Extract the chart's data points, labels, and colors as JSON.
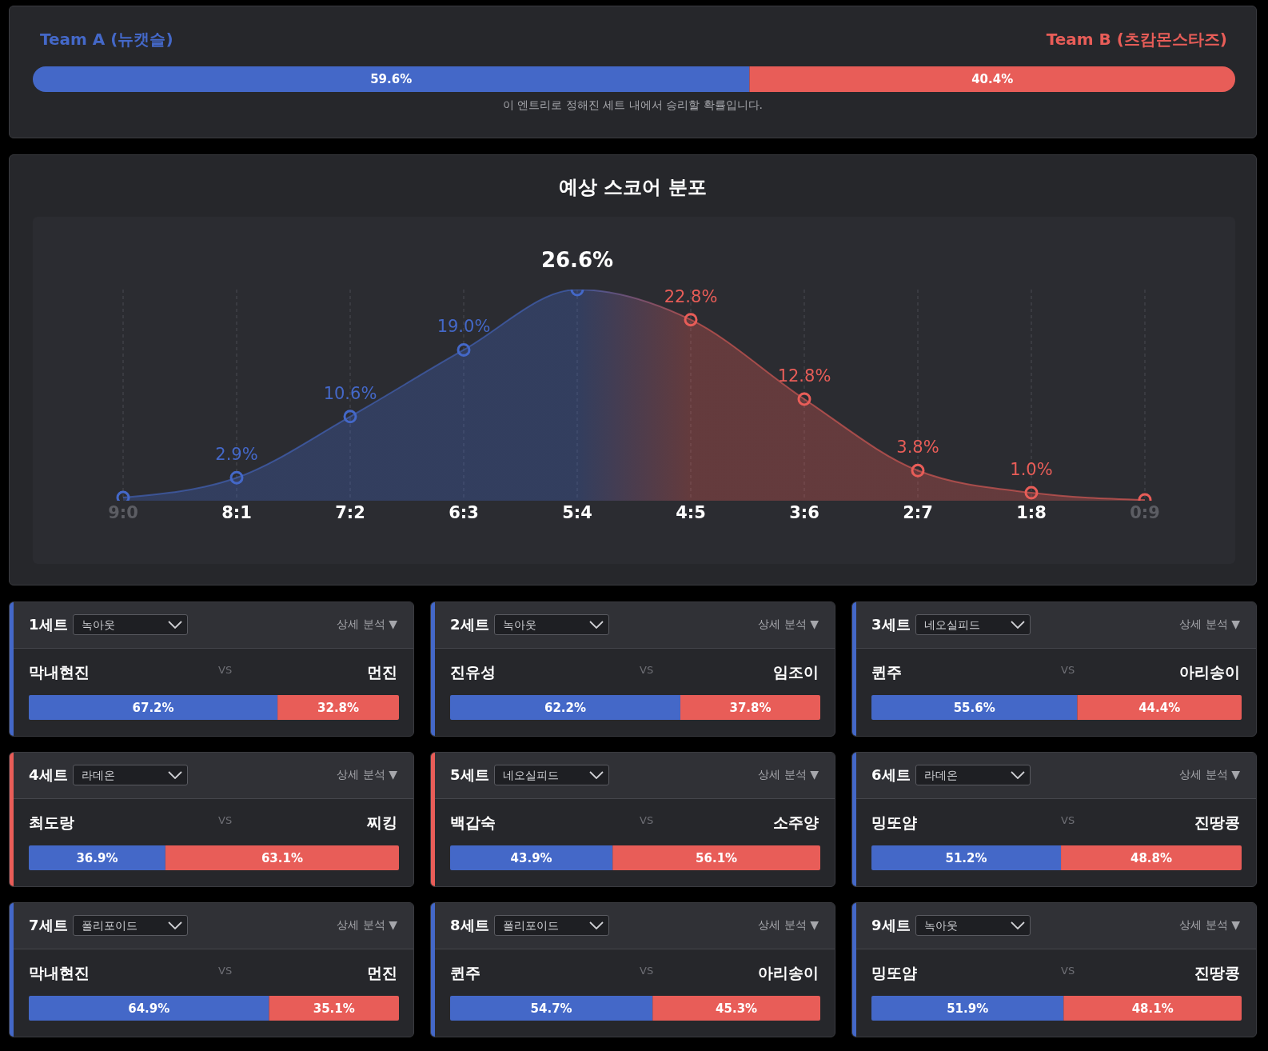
{
  "chart_data": [
    {
      "type": "bar",
      "orientation": "horizontal",
      "stacked": true,
      "categories": [
        null
      ],
      "tick_labels": false,
      "series": [
        {
          "name": "Team A (뉴캣슬)",
          "color": "#4468c8",
          "values": [
            59.6
          ],
          "value_labels": [
            "59.6%"
          ]
        },
        {
          "name": "Team B (츠캄몬스타즈)",
          "color": "#e85d58",
          "values": [
            40.4
          ],
          "value_labels": [
            "40.4%"
          ]
        }
      ],
      "annotations": [
        "이 엔트리로 정해진 세트 내에서 승리할 확률입니다."
      ]
    },
    {
      "type": "area",
      "title": "예상 스코어 분포",
      "categories": [
        "9:0",
        "8:1",
        "7:2",
        "6:3",
        "5:4",
        "4:5",
        "3:6",
        "2:7",
        "1:8",
        "0:9"
      ],
      "values": [
        0.4,
        2.9,
        10.6,
        19.0,
        26.6,
        22.8,
        12.8,
        3.8,
        1.0,
        0.1
      ],
      "value_labels": [
        null,
        "2.9%",
        "10.6%",
        "19.0%",
        "26.6%",
        "22.8%",
        "12.8%",
        "3.8%",
        "1.0%",
        null
      ],
      "colors": [
        "#4468c8",
        "#4468c8",
        "#4468c8",
        "#4468c8",
        "#4468c8",
        "#e85d58",
        "#e85d58",
        "#e85d58",
        "#e85d58",
        "#e85d58"
      ],
      "marker": "circle",
      "tick_labels": "x",
      "grid": "x"
    },
    {
      "type": "bar",
      "orientation": "horizontal",
      "stacked": true,
      "title": "1세트",
      "categories": [
        null
      ],
      "tick_labels": false,
      "series": [
        {
          "name": "막내현진",
          "color": "#4468c8",
          "values": [
            67.2
          ],
          "value_labels": [
            "67.2%"
          ]
        },
        {
          "name": "먼진",
          "color": "#e85d58",
          "values": [
            32.8
          ],
          "value_labels": [
            "32.8%"
          ]
        }
      ],
      "annotations": [
        "녹아웃",
        "VS",
        "상세 분석 ▼"
      ]
    },
    {
      "type": "bar",
      "orientation": "horizontal",
      "stacked": true,
      "title": "2세트",
      "categories": [
        null
      ],
      "tick_labels": false,
      "series": [
        {
          "name": "진유성",
          "color": "#4468c8",
          "values": [
            62.2
          ],
          "value_labels": [
            "62.2%"
          ]
        },
        {
          "name": "임조이",
          "color": "#e85d58",
          "values": [
            37.8
          ],
          "value_labels": [
            "37.8%"
          ]
        }
      ],
      "annotations": [
        "녹아웃",
        "VS",
        "상세 분석 ▼"
      ]
    },
    {
      "type": "bar",
      "orientation": "horizontal",
      "stacked": true,
      "title": "3세트",
      "categories": [
        null
      ],
      "tick_labels": false,
      "series": [
        {
          "name": "퀸주",
          "color": "#4468c8",
          "values": [
            55.6
          ],
          "value_labels": [
            "55.6%"
          ]
        },
        {
          "name": "아리송이",
          "color": "#e85d58",
          "values": [
            44.4
          ],
          "value_labels": [
            "44.4%"
          ]
        }
      ],
      "annotations": [
        "네오실피드",
        "VS",
        "상세 분석 ▼"
      ]
    },
    {
      "type": "bar",
      "orientation": "horizontal",
      "stacked": true,
      "title": "4세트",
      "categories": [
        null
      ],
      "tick_labels": false,
      "series": [
        {
          "name": "최도랑",
          "color": "#4468c8",
          "values": [
            36.9
          ],
          "value_labels": [
            "36.9%"
          ]
        },
        {
          "name": "찌킹",
          "color": "#e85d58",
          "values": [
            63.1
          ],
          "value_labels": [
            "63.1%"
          ]
        }
      ],
      "annotations": [
        "라데온",
        "VS",
        "상세 분석 ▼"
      ]
    },
    {
      "type": "bar",
      "orientation": "horizontal",
      "stacked": true,
      "title": "5세트",
      "categories": [
        null
      ],
      "tick_labels": false,
      "series": [
        {
          "name": "백갑숙",
          "color": "#4468c8",
          "values": [
            43.9
          ],
          "value_labels": [
            "43.9%"
          ]
        },
        {
          "name": "소주양",
          "color": "#e85d58",
          "values": [
            56.1
          ],
          "value_labels": [
            "56.1%"
          ]
        }
      ],
      "annotations": [
        "네오실피드",
        "VS",
        "상세 분석 ▼"
      ]
    },
    {
      "type": "bar",
      "orientation": "horizontal",
      "stacked": true,
      "title": "6세트",
      "categories": [
        null
      ],
      "tick_labels": false,
      "series": [
        {
          "name": "밍또얌",
          "color": "#4468c8",
          "values": [
            51.2
          ],
          "value_labels": [
            "51.2%"
          ]
        },
        {
          "name": "진땅콩",
          "color": "#e85d58",
          "values": [
            48.8
          ],
          "value_labels": [
            "48.8%"
          ]
        }
      ],
      "annotations": [
        "라데온",
        "VS",
        "상세 분석 ▼"
      ]
    },
    {
      "type": "bar",
      "orientation": "horizontal",
      "stacked": true,
      "title": "7세트",
      "categories": [
        null
      ],
      "tick_labels": false,
      "series": [
        {
          "name": "막내현진",
          "color": "#4468c8",
          "values": [
            64.9
          ],
          "value_labels": [
            "64.9%"
          ]
        },
        {
          "name": "먼진",
          "color": "#e85d58",
          "values": [
            35.1
          ],
          "value_labels": [
            "35.1%"
          ]
        }
      ],
      "annotations": [
        "폴리포이드",
        "VS",
        "상세 분석 ▼"
      ]
    },
    {
      "type": "bar",
      "orientation": "horizontal",
      "stacked": true,
      "title": "8세트",
      "categories": [
        null
      ],
      "tick_labels": false,
      "series": [
        {
          "name": "퀸주",
          "color": "#4468c8",
          "values": [
            54.7
          ],
          "value_labels": [
            "54.7%"
          ]
        },
        {
          "name": "아리송이",
          "color": "#e85d58",
          "values": [
            45.3
          ],
          "value_labels": [
            "45.3%"
          ]
        }
      ],
      "annotations": [
        "폴리포이드",
        "VS",
        "상세 분석 ▼"
      ]
    },
    {
      "type": "bar",
      "orientation": "horizontal",
      "stacked": true,
      "title": "9세트",
      "categories": [
        null
      ],
      "tick_labels": false,
      "series": [
        {
          "name": "밍또얌",
          "color": "#4468c8",
          "values": [
            51.9
          ],
          "value_labels": [
            "51.9%"
          ]
        },
        {
          "name": "진땅콩",
          "color": "#e85d58",
          "values": [
            48.1
          ],
          "value_labels": [
            "48.1%"
          ]
        }
      ],
      "annotations": [
        "녹아웃",
        "VS",
        "상세 분석 ▼"
      ]
    }
  ]
}
